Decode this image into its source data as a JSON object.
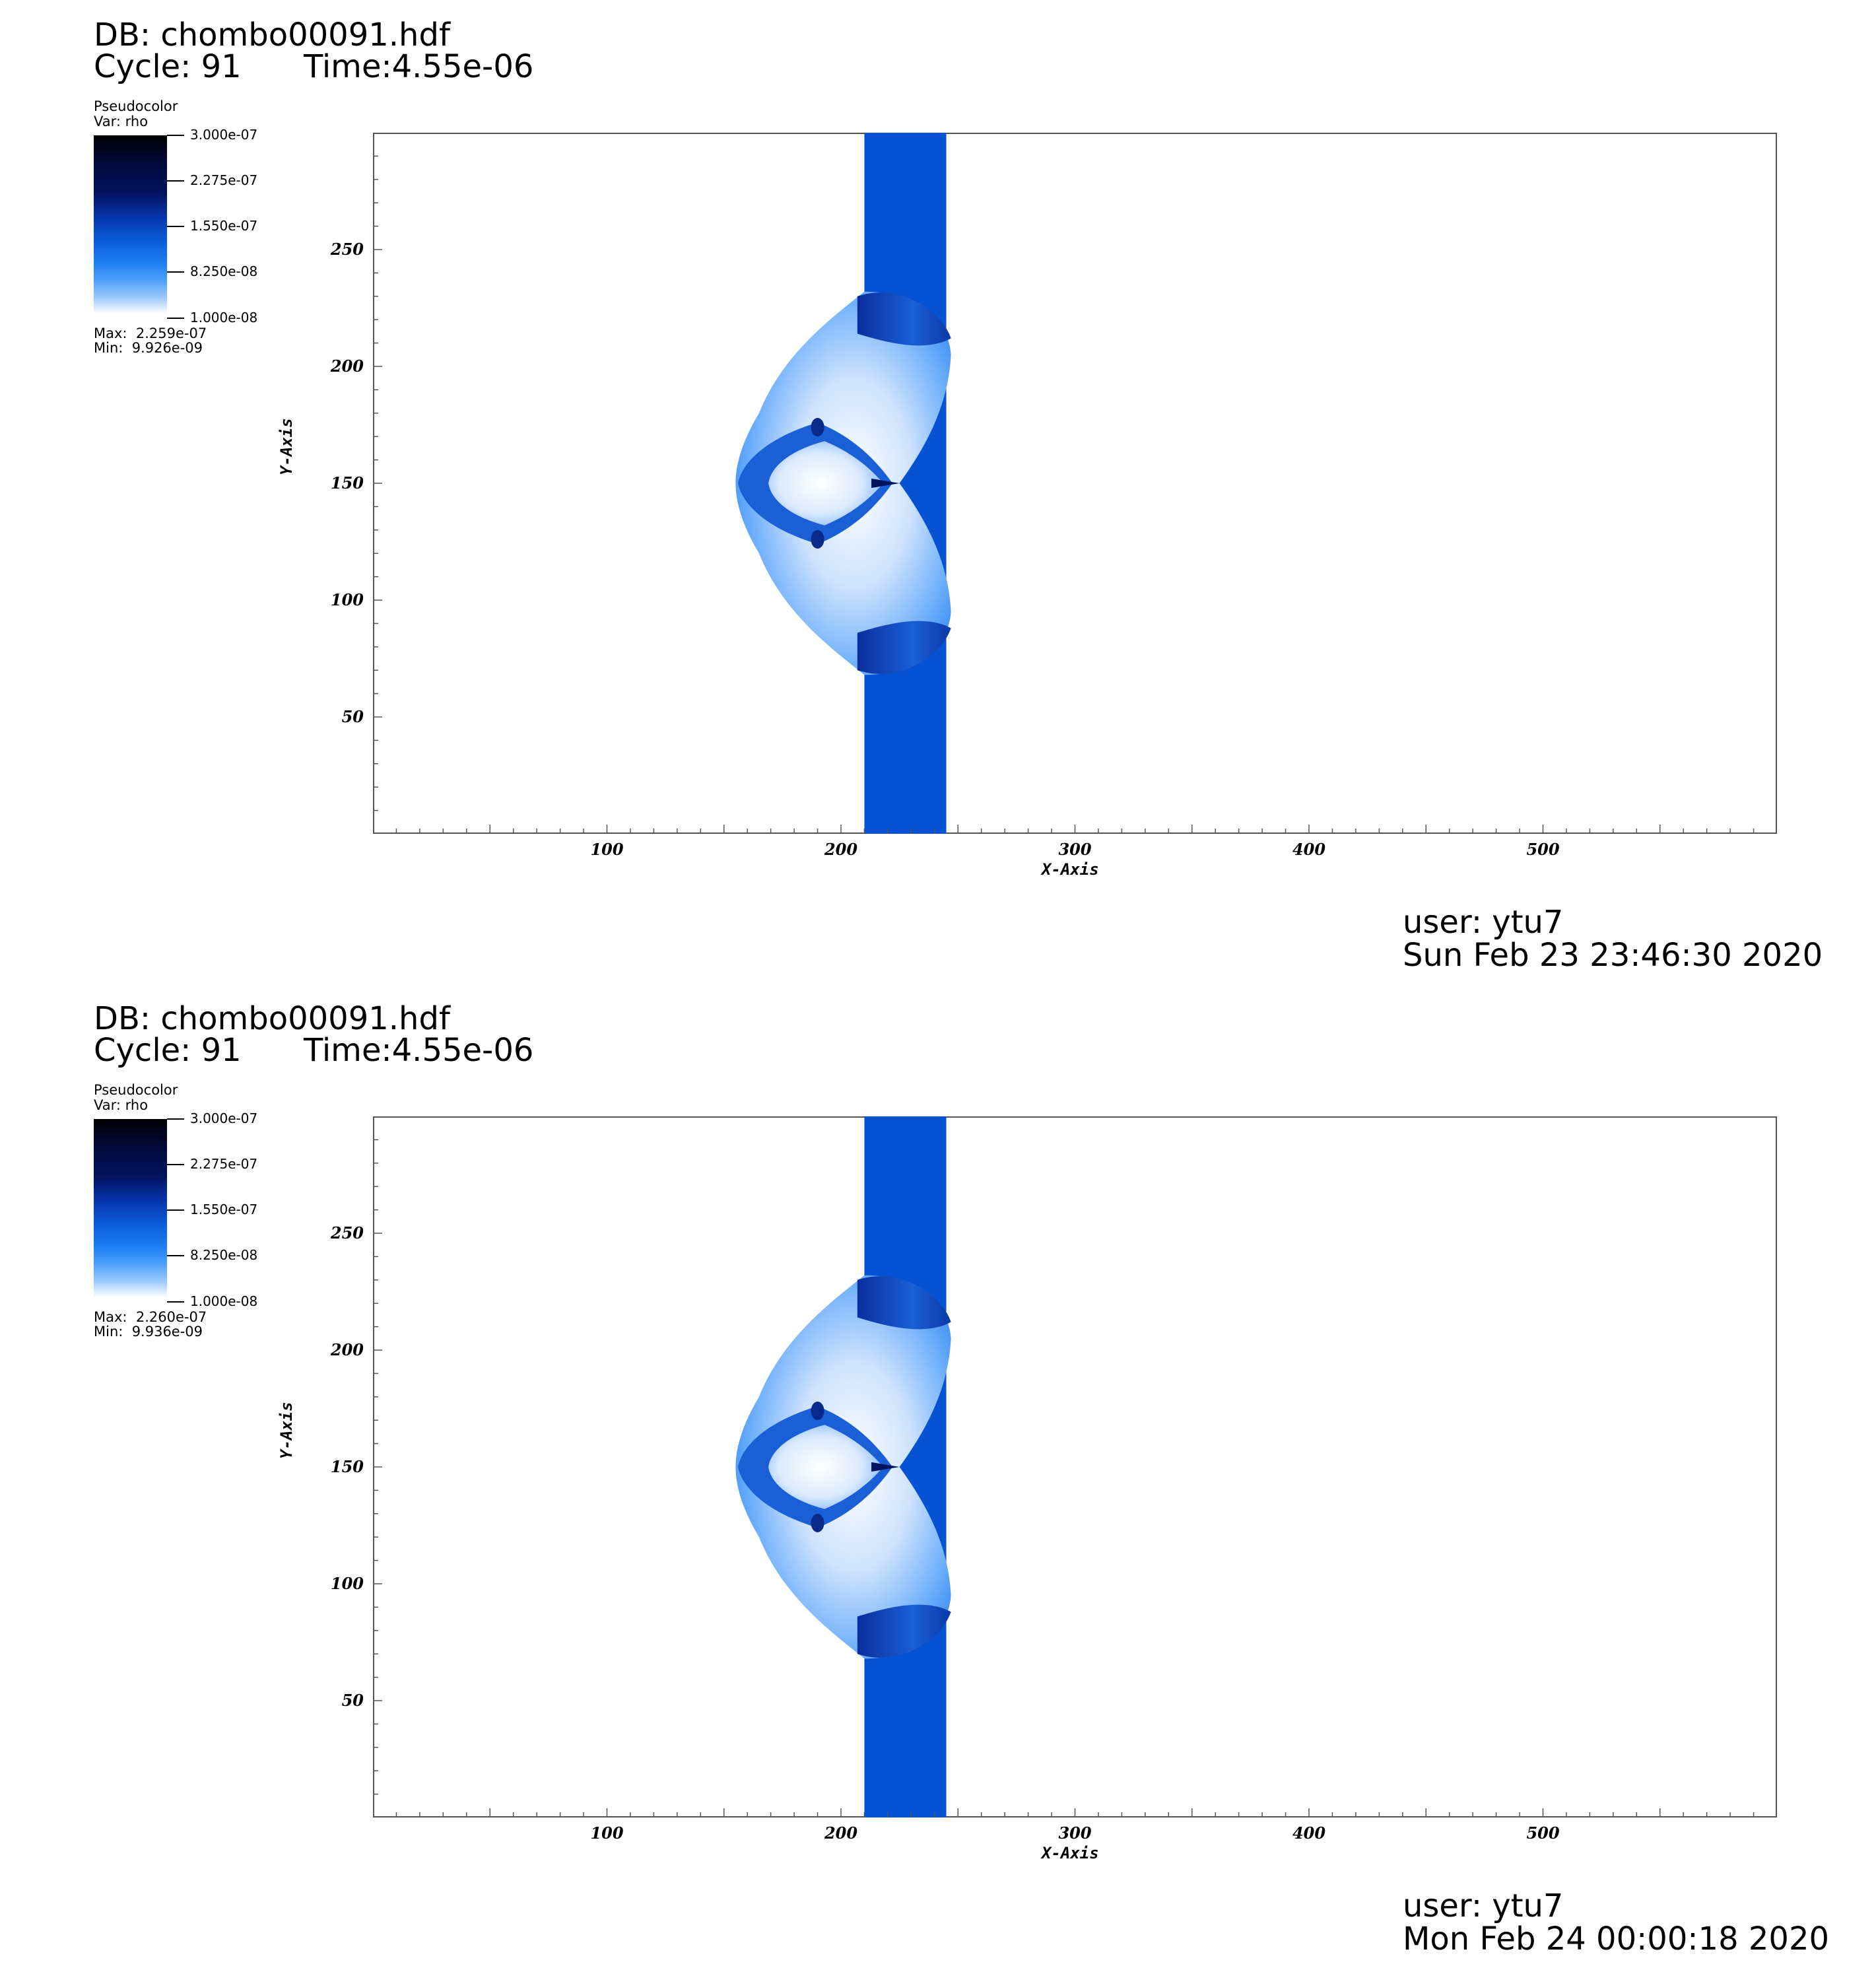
{
  "panels": [
    {
      "db_label": "DB: chombo00091.hdf",
      "cycle_label": "Cycle: 91",
      "time_label": "Time:4.55e-06",
      "plot_type": "Pseudocolor",
      "var_label": "Var: rho",
      "legend_values": [
        "3.000e-07",
        "2.275e-07",
        "1.550e-07",
        "8.250e-08",
        "1.000e-08"
      ],
      "max_label": "Max:  2.259e-07",
      "min_label": "Min:  9.926e-09",
      "user_label": "user: ytu7",
      "date_label": "Sun Feb 23 23:46:30 2020"
    },
    {
      "db_label": "DB: chombo00091.hdf",
      "cycle_label": "Cycle: 91",
      "time_label": "Time:4.55e-06",
      "plot_type": "Pseudocolor",
      "var_label": "Var: rho",
      "legend_values": [
        "3.000e-07",
        "2.275e-07",
        "1.550e-07",
        "8.250e-08",
        "1.000e-08"
      ],
      "max_label": "Max:  2.260e-07",
      "min_label": "Min:  9.936e-09",
      "user_label": "user: ytu7",
      "date_label": "Mon Feb 24 00:00:18 2020"
    }
  ],
  "chart_data": [
    {
      "type": "heatmap",
      "xlabel": "X-Axis",
      "ylabel": "Y-Axis",
      "x_ticks": [
        100,
        200,
        300,
        400,
        500
      ],
      "y_ticks": [
        50,
        100,
        150,
        200,
        250
      ],
      "xlim": [
        0,
        600
      ],
      "ylim": [
        0,
        300
      ],
      "colormap": "blue-white",
      "color_range": [
        1e-08,
        3e-07
      ],
      "field_max": 2.259e-07,
      "field_min": 9.926e-09,
      "slab_x_range": [
        210,
        245
      ],
      "structure_x_range": [
        155,
        248
      ],
      "structure_y_range": [
        66,
        234
      ],
      "grid": false
    },
    {
      "type": "heatmap",
      "xlabel": "X-Axis",
      "ylabel": "Y-Axis",
      "x_ticks": [
        100,
        200,
        300,
        400,
        500
      ],
      "y_ticks": [
        50,
        100,
        150,
        200,
        250
      ],
      "xlim": [
        0,
        600
      ],
      "ylim": [
        0,
        300
      ],
      "colormap": "blue-white",
      "color_range": [
        1e-08,
        3e-07
      ],
      "field_max": 2.26e-07,
      "field_min": 9.936e-09,
      "slab_x_range": [
        210,
        245
      ],
      "structure_x_range": [
        155,
        248
      ],
      "structure_y_range": [
        66,
        234
      ],
      "grid": false
    }
  ]
}
